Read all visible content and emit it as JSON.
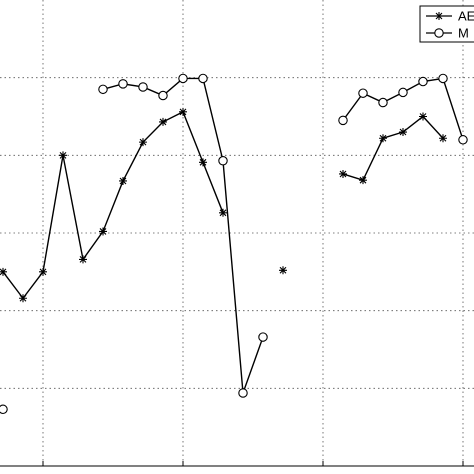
{
  "chart_data": {
    "type": "line",
    "x": [
      0,
      1,
      2,
      3,
      4,
      5,
      6,
      7,
      8,
      9,
      10,
      11,
      12,
      13,
      14,
      15,
      16,
      17,
      18,
      19,
      20,
      21,
      22,
      23
    ],
    "series": [
      {
        "name": "AE",
        "color": "#000000",
        "marker": "asterisk",
        "values": [
          2.5,
          2.16,
          2.5,
          4.0,
          2.66,
          3.02,
          3.67,
          4.17,
          4.43,
          4.56,
          3.91,
          3.26,
          null,
          null,
          2.52,
          null,
          null,
          3.76,
          3.68,
          4.22,
          4.3,
          4.5,
          4.22,
          null
        ]
      },
      {
        "name": "M",
        "color": "#000000",
        "marker": "circle",
        "values": [
          0.73,
          null,
          null,
          null,
          null,
          4.85,
          4.92,
          4.88,
          4.77,
          4.99,
          4.99,
          3.93,
          0.94,
          1.66,
          null,
          null,
          null,
          4.45,
          4.8,
          4.68,
          4.81,
          4.95,
          4.99,
          4.2
        ]
      }
    ],
    "xlim": [
      -0.15,
      23.55
    ],
    "ylim": [
      0,
      6
    ],
    "xticks": [
      2,
      9,
      16,
      23
    ],
    "yticks": [
      1,
      2,
      3,
      4,
      5
    ],
    "grid": true,
    "legend": "upper right"
  }
}
